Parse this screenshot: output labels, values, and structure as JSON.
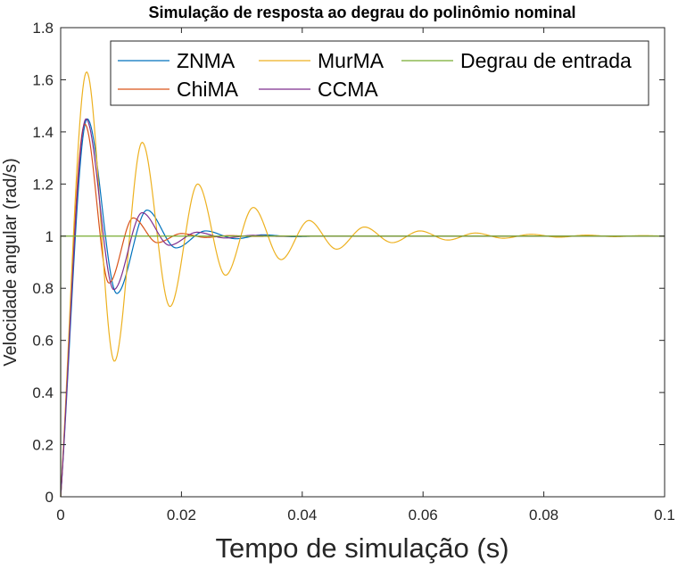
{
  "chart_data": {
    "type": "line",
    "title": "Simulação de resposta ao degrau do polinômio nominal",
    "xlabel": "Tempo de simulação (s)",
    "ylabel": "Velocidade angular (rad/s)",
    "xlim": [
      0,
      0.1
    ],
    "ylim": [
      0,
      1.8
    ],
    "xticks": [
      0,
      0.02,
      0.04,
      0.06,
      0.08,
      0.1
    ],
    "xtick_labels": [
      "0",
      "0.02",
      "0.04",
      "0.06",
      "0.08",
      "0.1"
    ],
    "yticks": [
      0,
      0.2,
      0.4,
      0.6,
      0.8,
      1,
      1.2,
      1.4,
      1.6,
      1.8
    ],
    "ytick_labels": [
      "0",
      "0.2",
      "0.4",
      "0.6",
      "0.8",
      "1",
      "1.2",
      "1.4",
      "1.6",
      "1.8"
    ],
    "grid": false,
    "legend_position": "top-right",
    "series": [
      {
        "name": "ZNMA",
        "color": "#0072BD",
        "x": [
          0,
          0.0044,
          0.0093,
          0.0143,
          0.0191,
          0.024,
          0.029,
          0.0335,
          0.0385,
          0.043,
          0.05,
          0.1
        ],
        "y": [
          0,
          1.45,
          0.78,
          1.1,
          0.955,
          1.02,
          0.99,
          1.005,
          0.998,
          1.0,
          1.0,
          1.0
        ]
      },
      {
        "name": "ChiMA",
        "color": "#D95319",
        "x": [
          0,
          0.004,
          0.008,
          0.012,
          0.016,
          0.02,
          0.024,
          0.028,
          0.032,
          0.036,
          0.045,
          0.1
        ],
        "y": [
          0,
          1.43,
          0.82,
          1.07,
          0.975,
          1.01,
          0.995,
          1.002,
          0.999,
          1.0,
          1.0,
          1.0
        ]
      },
      {
        "name": "MurMA",
        "color": "#EDB120",
        "x": [
          0,
          0.0043,
          0.0089,
          0.0135,
          0.0181,
          0.0227,
          0.0273,
          0.0319,
          0.0365,
          0.0411,
          0.0457,
          0.0503,
          0.0549,
          0.0595,
          0.0641,
          0.0687,
          0.0733,
          0.0779,
          0.0825,
          0.0871,
          0.0917,
          0.0963,
          0.1
        ],
        "y": [
          0,
          1.63,
          0.52,
          1.36,
          0.73,
          1.2,
          0.85,
          1.11,
          0.91,
          1.06,
          0.95,
          1.035,
          0.975,
          1.02,
          0.985,
          1.012,
          0.992,
          1.007,
          0.996,
          1.004,
          0.998,
          1.002,
          1.0
        ]
      },
      {
        "name": "CCMA",
        "color": "#7E2F8E",
        "x": [
          0,
          0.0042,
          0.0088,
          0.0135,
          0.018,
          0.0226,
          0.0272,
          0.0318,
          0.0364,
          0.041,
          0.05,
          0.1
        ],
        "y": [
          0,
          1.45,
          0.795,
          1.09,
          0.965,
          1.015,
          0.993,
          1.003,
          0.999,
          1.0,
          1.0,
          1.0
        ]
      },
      {
        "name": "Degrau de entrada",
        "color": "#77AC30",
        "x": [
          0,
          0,
          0.1
        ],
        "y": [
          0,
          1,
          1
        ]
      }
    ]
  }
}
